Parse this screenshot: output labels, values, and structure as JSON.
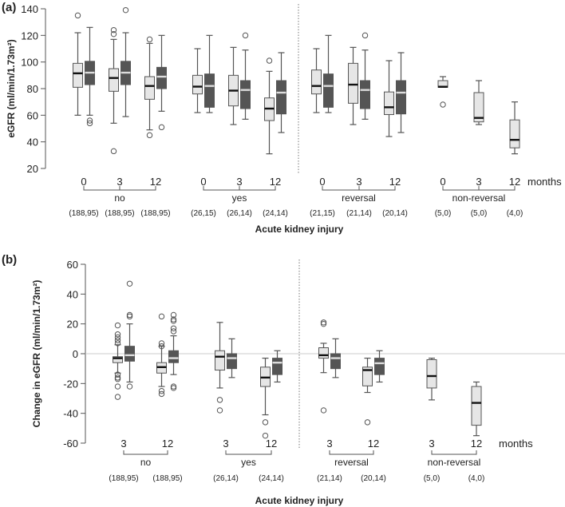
{
  "colors": {
    "light_box": "#e6e6e6",
    "dark_box": "#555555",
    "line": "#555555",
    "zero_line": "#cccccc"
  },
  "chart_data": [
    {
      "type": "box",
      "panel_label": "(a)",
      "ylabel": "eGFR (ml/min/1.73m²)",
      "xlabel": "Acute kidney injury",
      "ylim": [
        20,
        140
      ],
      "yticks": [
        20,
        40,
        60,
        80,
        100,
        120,
        140
      ],
      "unit_label": "months",
      "zero_line": false,
      "groups": [
        {
          "name": "no",
          "times": [
            {
              "t": "0",
              "n": "(188,95)",
              "boxes": [
                {
                  "series": "light",
                  "lo": 60,
                  "q1": 81,
                  "med": 91.5,
                  "q3": 99,
                  "hi": 122,
                  "out": [
                    135
                  ]
                },
                {
                  "series": "dark",
                  "lo": 60,
                  "q1": 83,
                  "med": 92,
                  "q3": 100.5,
                  "hi": 126,
                  "out": [
                    56,
                    54
                  ]
                }
              ]
            },
            {
              "t": "3",
              "n": "(188,95)",
              "boxes": [
                {
                  "series": "light",
                  "lo": 54,
                  "q1": 78,
                  "med": 88,
                  "q3": 95,
                  "hi": 117,
                  "out": [
                    124,
                    121,
                    33
                  ]
                },
                {
                  "series": "dark",
                  "lo": 59,
                  "q1": 83,
                  "med": 92,
                  "q3": 100.5,
                  "hi": 122,
                  "out": [
                    139
                  ]
                }
              ]
            },
            {
              "t": "12",
              "n": "(188,95)",
              "boxes": [
                {
                  "series": "light",
                  "lo": 49,
                  "q1": 72,
                  "med": 82,
                  "q3": 89,
                  "hi": 114,
                  "out": [
                    117,
                    45
                  ]
                },
                {
                  "series": "dark",
                  "lo": 63,
                  "q1": 80,
                  "med": 89,
                  "q3": 96,
                  "hi": 120,
                  "out": [
                    51
                  ]
                }
              ]
            }
          ]
        },
        {
          "name": "yes",
          "times": [
            {
              "t": "0",
              "n": "(26,15)",
              "boxes": [
                {
                  "series": "light",
                  "lo": 62,
                  "q1": 76,
                  "med": 81.5,
                  "q3": 90,
                  "hi": 110,
                  "out": []
                },
                {
                  "series": "dark",
                  "lo": 62,
                  "q1": 66,
                  "med": 82,
                  "q3": 91,
                  "hi": 120,
                  "out": []
                }
              ]
            },
            {
              "t": "3",
              "n": "(26,14)",
              "boxes": [
                {
                  "series": "light",
                  "lo": 53,
                  "q1": 67,
                  "med": 78.5,
                  "q3": 90,
                  "hi": 111,
                  "out": []
                },
                {
                  "series": "dark",
                  "lo": 57,
                  "q1": 65,
                  "med": 79,
                  "q3": 86,
                  "hi": 109,
                  "out": [
                    120
                  ]
                }
              ]
            },
            {
              "t": "12",
              "n": "(24,14)",
              "boxes": [
                {
                  "series": "light",
                  "lo": 31,
                  "q1": 56,
                  "med": 65,
                  "q3": 73,
                  "hi": 93,
                  "out": [
                    101
                  ]
                },
                {
                  "series": "dark",
                  "lo": 47,
                  "q1": 61,
                  "med": 77,
                  "q3": 86,
                  "hi": 107,
                  "out": []
                }
              ]
            }
          ]
        },
        {
          "name": "reversal",
          "times": [
            {
              "t": "0",
              "n": "(21,15)",
              "boxes": [
                {
                  "series": "light",
                  "lo": 62,
                  "q1": 76,
                  "med": 82,
                  "q3": 94,
                  "hi": 110,
                  "out": []
                },
                {
                  "series": "dark",
                  "lo": 62,
                  "q1": 66,
                  "med": 82,
                  "q3": 91,
                  "hi": 120,
                  "out": []
                }
              ]
            },
            {
              "t": "3",
              "n": "(21,14)",
              "boxes": [
                {
                  "series": "light",
                  "lo": 53,
                  "q1": 69,
                  "med": 83,
                  "q3": 99,
                  "hi": 111,
                  "out": []
                },
                {
                  "series": "dark",
                  "lo": 57,
                  "q1": 65,
                  "med": 79,
                  "q3": 86,
                  "hi": 109,
                  "out": [
                    120
                  ]
                }
              ]
            },
            {
              "t": "12",
              "n": "(20,14)",
              "boxes": [
                {
                  "series": "light",
                  "lo": 44,
                  "q1": 60.5,
                  "med": 66,
                  "q3": 77.5,
                  "hi": 101,
                  "out": []
                },
                {
                  "series": "dark",
                  "lo": 47,
                  "q1": 61,
                  "med": 77,
                  "q3": 86,
                  "hi": 107,
                  "out": []
                }
              ]
            }
          ]
        },
        {
          "name": "non-reversal",
          "times": [
            {
              "t": "0",
              "n": "(5,0)",
              "boxes": [
                {
                  "series": "light",
                  "lo": 81,
                  "q1": 81,
                  "med": 81.4,
                  "q3": 86,
                  "hi": 89,
                  "out": [
                    68
                  ]
                }
              ]
            },
            {
              "t": "3",
              "n": "(5,0)",
              "boxes": [
                {
                  "series": "light",
                  "lo": 53,
                  "q1": 55,
                  "med": 58,
                  "q3": 77,
                  "hi": 86,
                  "out": []
                }
              ]
            },
            {
              "t": "12",
              "n": "(4,0)",
              "boxes": [
                {
                  "series": "light",
                  "lo": 31,
                  "q1": 35.5,
                  "med": 41.5,
                  "q3": 56.5,
                  "hi": 70,
                  "out": []
                }
              ]
            }
          ]
        }
      ]
    },
    {
      "type": "box",
      "panel_label": "(b)",
      "ylabel": "Change in eGFR (ml/min/1.73m²)",
      "xlabel": "Acute kidney injury",
      "ylim": [
        -60,
        60
      ],
      "yticks": [
        -60,
        -40,
        -20,
        0,
        20,
        40,
        60
      ],
      "unit_label": "months",
      "zero_line": true,
      "groups": [
        {
          "name": "no",
          "times": [
            {
              "t": "3",
              "n": "(188,95)",
              "boxes": [
                {
                  "series": "light",
                  "lo": -13,
                  "q1": -6,
                  "med": -3,
                  "q3": -2,
                  "hi": 6,
                  "out": [
                    19,
                    13,
                    11,
                    9,
                    7,
                    -14,
                    -16,
                    -17,
                    -22,
                    -29
                  ]
                },
                {
                  "series": "dark",
                  "lo": -19,
                  "q1": -5,
                  "med": -1,
                  "q3": 5,
                  "hi": 20,
                  "out": [
                    47,
                    26,
                    25,
                    -22
                  ]
                }
              ]
            },
            {
              "t": "12",
              "n": "(188,95)",
              "boxes": [
                {
                  "series": "light",
                  "lo": -22,
                  "q1": -13,
                  "med": -9,
                  "q3": -6,
                  "hi": 5,
                  "out": [
                    25,
                    7,
                    5,
                    -25,
                    -27
                  ]
                },
                {
                  "series": "dark",
                  "lo": -14,
                  "q1": -6,
                  "med": -3,
                  "q3": 2,
                  "hi": 12,
                  "out": [
                    26,
                    23,
                    22,
                    17,
                    15,
                    -22,
                    -23
                  ]
                }
              ]
            }
          ]
        },
        {
          "name": "yes",
          "times": [
            {
              "t": "3",
              "n": "(26,14)",
              "boxes": [
                {
                  "series": "light",
                  "lo": -23,
                  "q1": -11,
                  "med": -2,
                  "q3": 2,
                  "hi": 21,
                  "out": [
                    -31,
                    -38
                  ]
                },
                {
                  "series": "dark",
                  "lo": -16,
                  "q1": -10,
                  "med": -3,
                  "q3": 0,
                  "hi": 10,
                  "out": []
                }
              ]
            },
            {
              "t": "12",
              "n": "(24,14)",
              "boxes": [
                {
                  "series": "light",
                  "lo": -41,
                  "q1": -22,
                  "med": -16,
                  "q3": -9,
                  "hi": -3,
                  "out": [
                    -46,
                    -55
                  ]
                },
                {
                  "series": "dark",
                  "lo": -19,
                  "q1": -14,
                  "med": -6,
                  "q3": -3,
                  "hi": 2,
                  "out": []
                }
              ]
            }
          ]
        },
        {
          "name": "reversal",
          "times": [
            {
              "t": "3",
              "n": "(21,14)",
              "boxes": [
                {
                  "series": "light",
                  "lo": -12.7,
                  "q1": -3,
                  "med": -1,
                  "q3": 4,
                  "hi": 7,
                  "out": [
                    21,
                    20,
                    -38
                  ]
                },
                {
                  "series": "dark",
                  "lo": -16,
                  "q1": -10,
                  "med": -3,
                  "q3": 0,
                  "hi": 10,
                  "out": []
                }
              ]
            },
            {
              "t": "12",
              "n": "(20,14)",
              "boxes": [
                {
                  "series": "light",
                  "lo": -26,
                  "q1": -21.6,
                  "med": -11,
                  "q3": -9,
                  "hi": -3,
                  "out": [
                    -46
                  ]
                },
                {
                  "series": "dark",
                  "lo": -19,
                  "q1": -14,
                  "med": -6.4,
                  "q3": -3,
                  "hi": 2,
                  "out": []
                }
              ]
            }
          ]
        },
        {
          "name": "non-reversal",
          "times": [
            {
              "t": "3",
              "n": "(5,0)",
              "boxes": [
                {
                  "series": "light",
                  "lo": -31,
                  "q1": -23,
                  "med": -15,
                  "q3": -4,
                  "hi": -3,
                  "out": []
                }
              ]
            },
            {
              "t": "12",
              "n": "(4,0)",
              "boxes": [
                {
                  "series": "light",
                  "lo": -55,
                  "q1": -48,
                  "med": -33,
                  "q3": -22,
                  "hi": -19,
                  "out": []
                }
              ]
            }
          ]
        }
      ]
    }
  ]
}
